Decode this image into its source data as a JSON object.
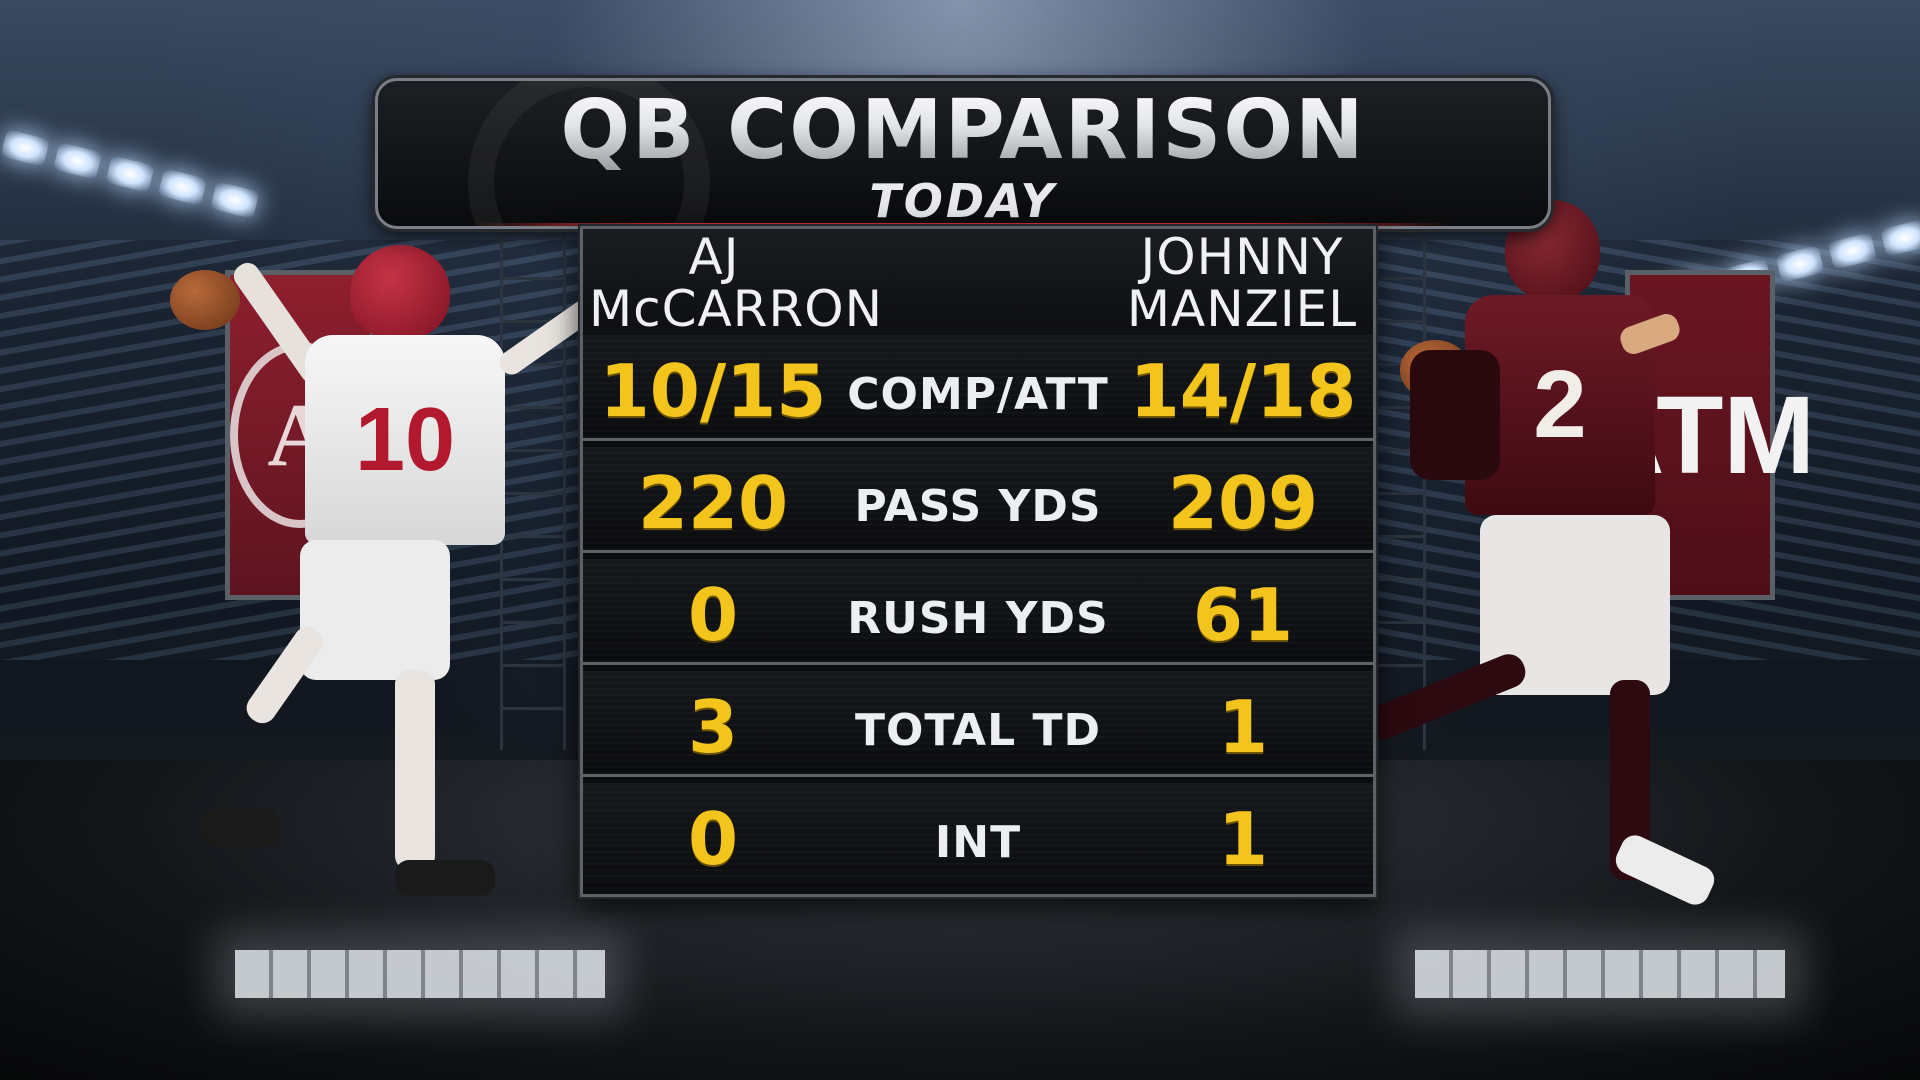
{
  "header": {
    "title": "QB COMPARISON",
    "subtitle": "TODAY"
  },
  "players": {
    "left": {
      "first": "AJ",
      "last": "McCARRON",
      "jersey_number": "10",
      "team_color": "#9e1b32"
    },
    "right": {
      "first": "JOHNNY",
      "last": "MANZIEL",
      "jersey_number": "2",
      "team_color": "#500000"
    }
  },
  "banners": {
    "left_mark": "A",
    "right_mark": "ATM"
  },
  "stats": [
    {
      "label": "COMP/ATT",
      "left": "10/15",
      "right": "14/18"
    },
    {
      "label": "PASS YDS",
      "left": "220",
      "right": "209"
    },
    {
      "label": "RUSH YDS",
      "left": "0",
      "right": "61"
    },
    {
      "label": "TOTAL TD",
      "left": "3",
      "right": "1"
    },
    {
      "label": "INT",
      "left": "0",
      "right": "1"
    }
  ],
  "colors": {
    "value": "#f3c51c",
    "label": "#eceef0",
    "panel": "#0c0d10"
  }
}
